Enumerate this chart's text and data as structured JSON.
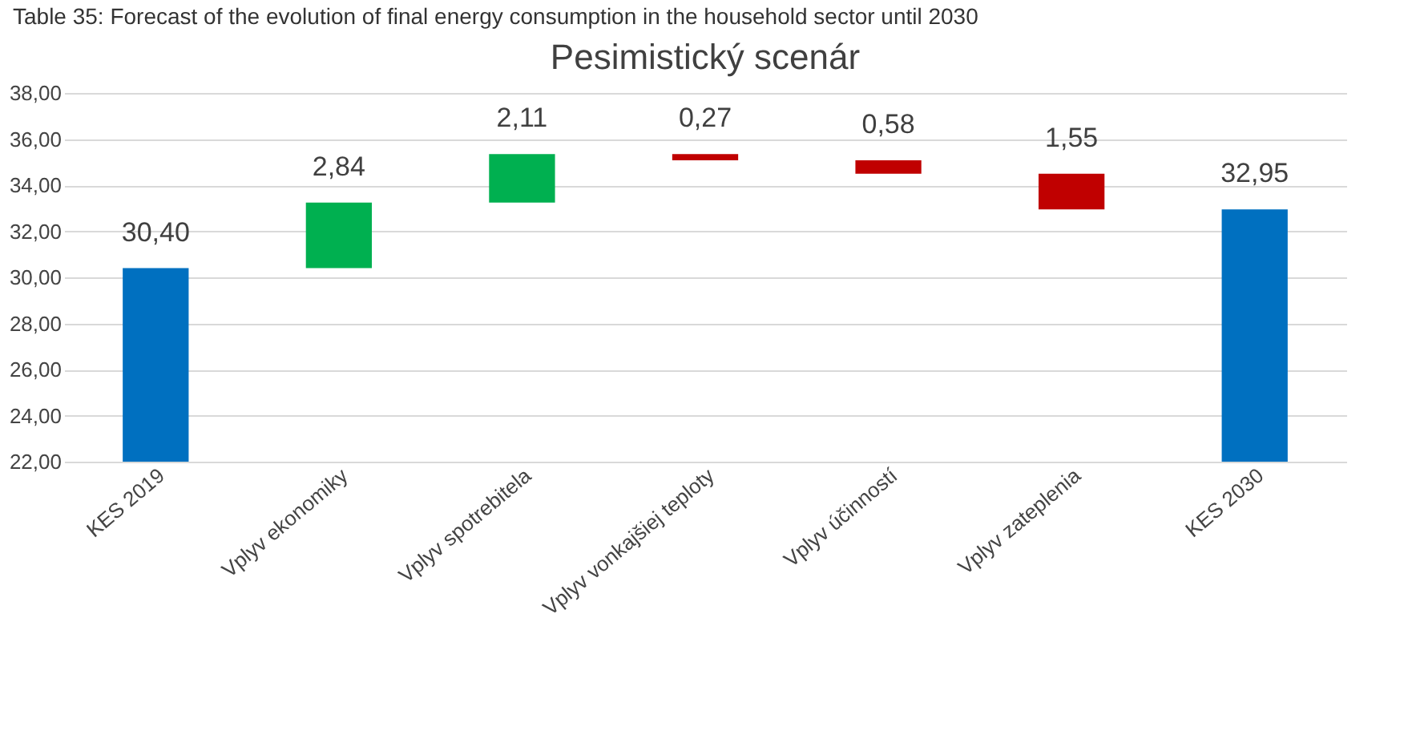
{
  "chart_data": {
    "type": "bar",
    "title": "Pesimistický scenár",
    "annotations": [
      "Table 35: Forecast of the evolution of final energy consumption in the household sector until 2030"
    ],
    "categories": [
      "KES 2019",
      "Vplyv ekonomiky",
      "Vplyv spotrebitela",
      "Vplyv vonkajšiej teploty",
      "Vplyv účinností",
      "Vplyv zateplenia",
      "KES 2030"
    ],
    "values": [
      30.4,
      2.84,
      2.11,
      -0.27,
      -0.58,
      -1.55,
      32.95
    ],
    "base": [
      null,
      30.4,
      33.24,
      35.35,
      35.08,
      34.5,
      null
    ],
    "colors": [
      "#0070c0",
      "#00b050",
      "#00b050",
      "#c00000",
      "#c00000",
      "#c00000",
      "#0070c0"
    ],
    "value_labels": [
      "30,40",
      "2,84",
      "2,11",
      "0,27",
      "0,58",
      "1,55",
      "32,95"
    ],
    "ylim": [
      22,
      38
    ],
    "yticks": [
      {
        "value": 22,
        "label": "22,00"
      },
      {
        "value": 24,
        "label": "24,00"
      },
      {
        "value": 26,
        "label": "26,00"
      },
      {
        "value": 28,
        "label": "28,00"
      },
      {
        "value": 30,
        "label": "30,00"
      },
      {
        "value": 32,
        "label": "32,00"
      },
      {
        "value": 34,
        "label": "34,00"
      },
      {
        "value": 36,
        "label": "36,00"
      },
      {
        "value": 38,
        "label": "38,00"
      }
    ],
    "grid": "y"
  }
}
